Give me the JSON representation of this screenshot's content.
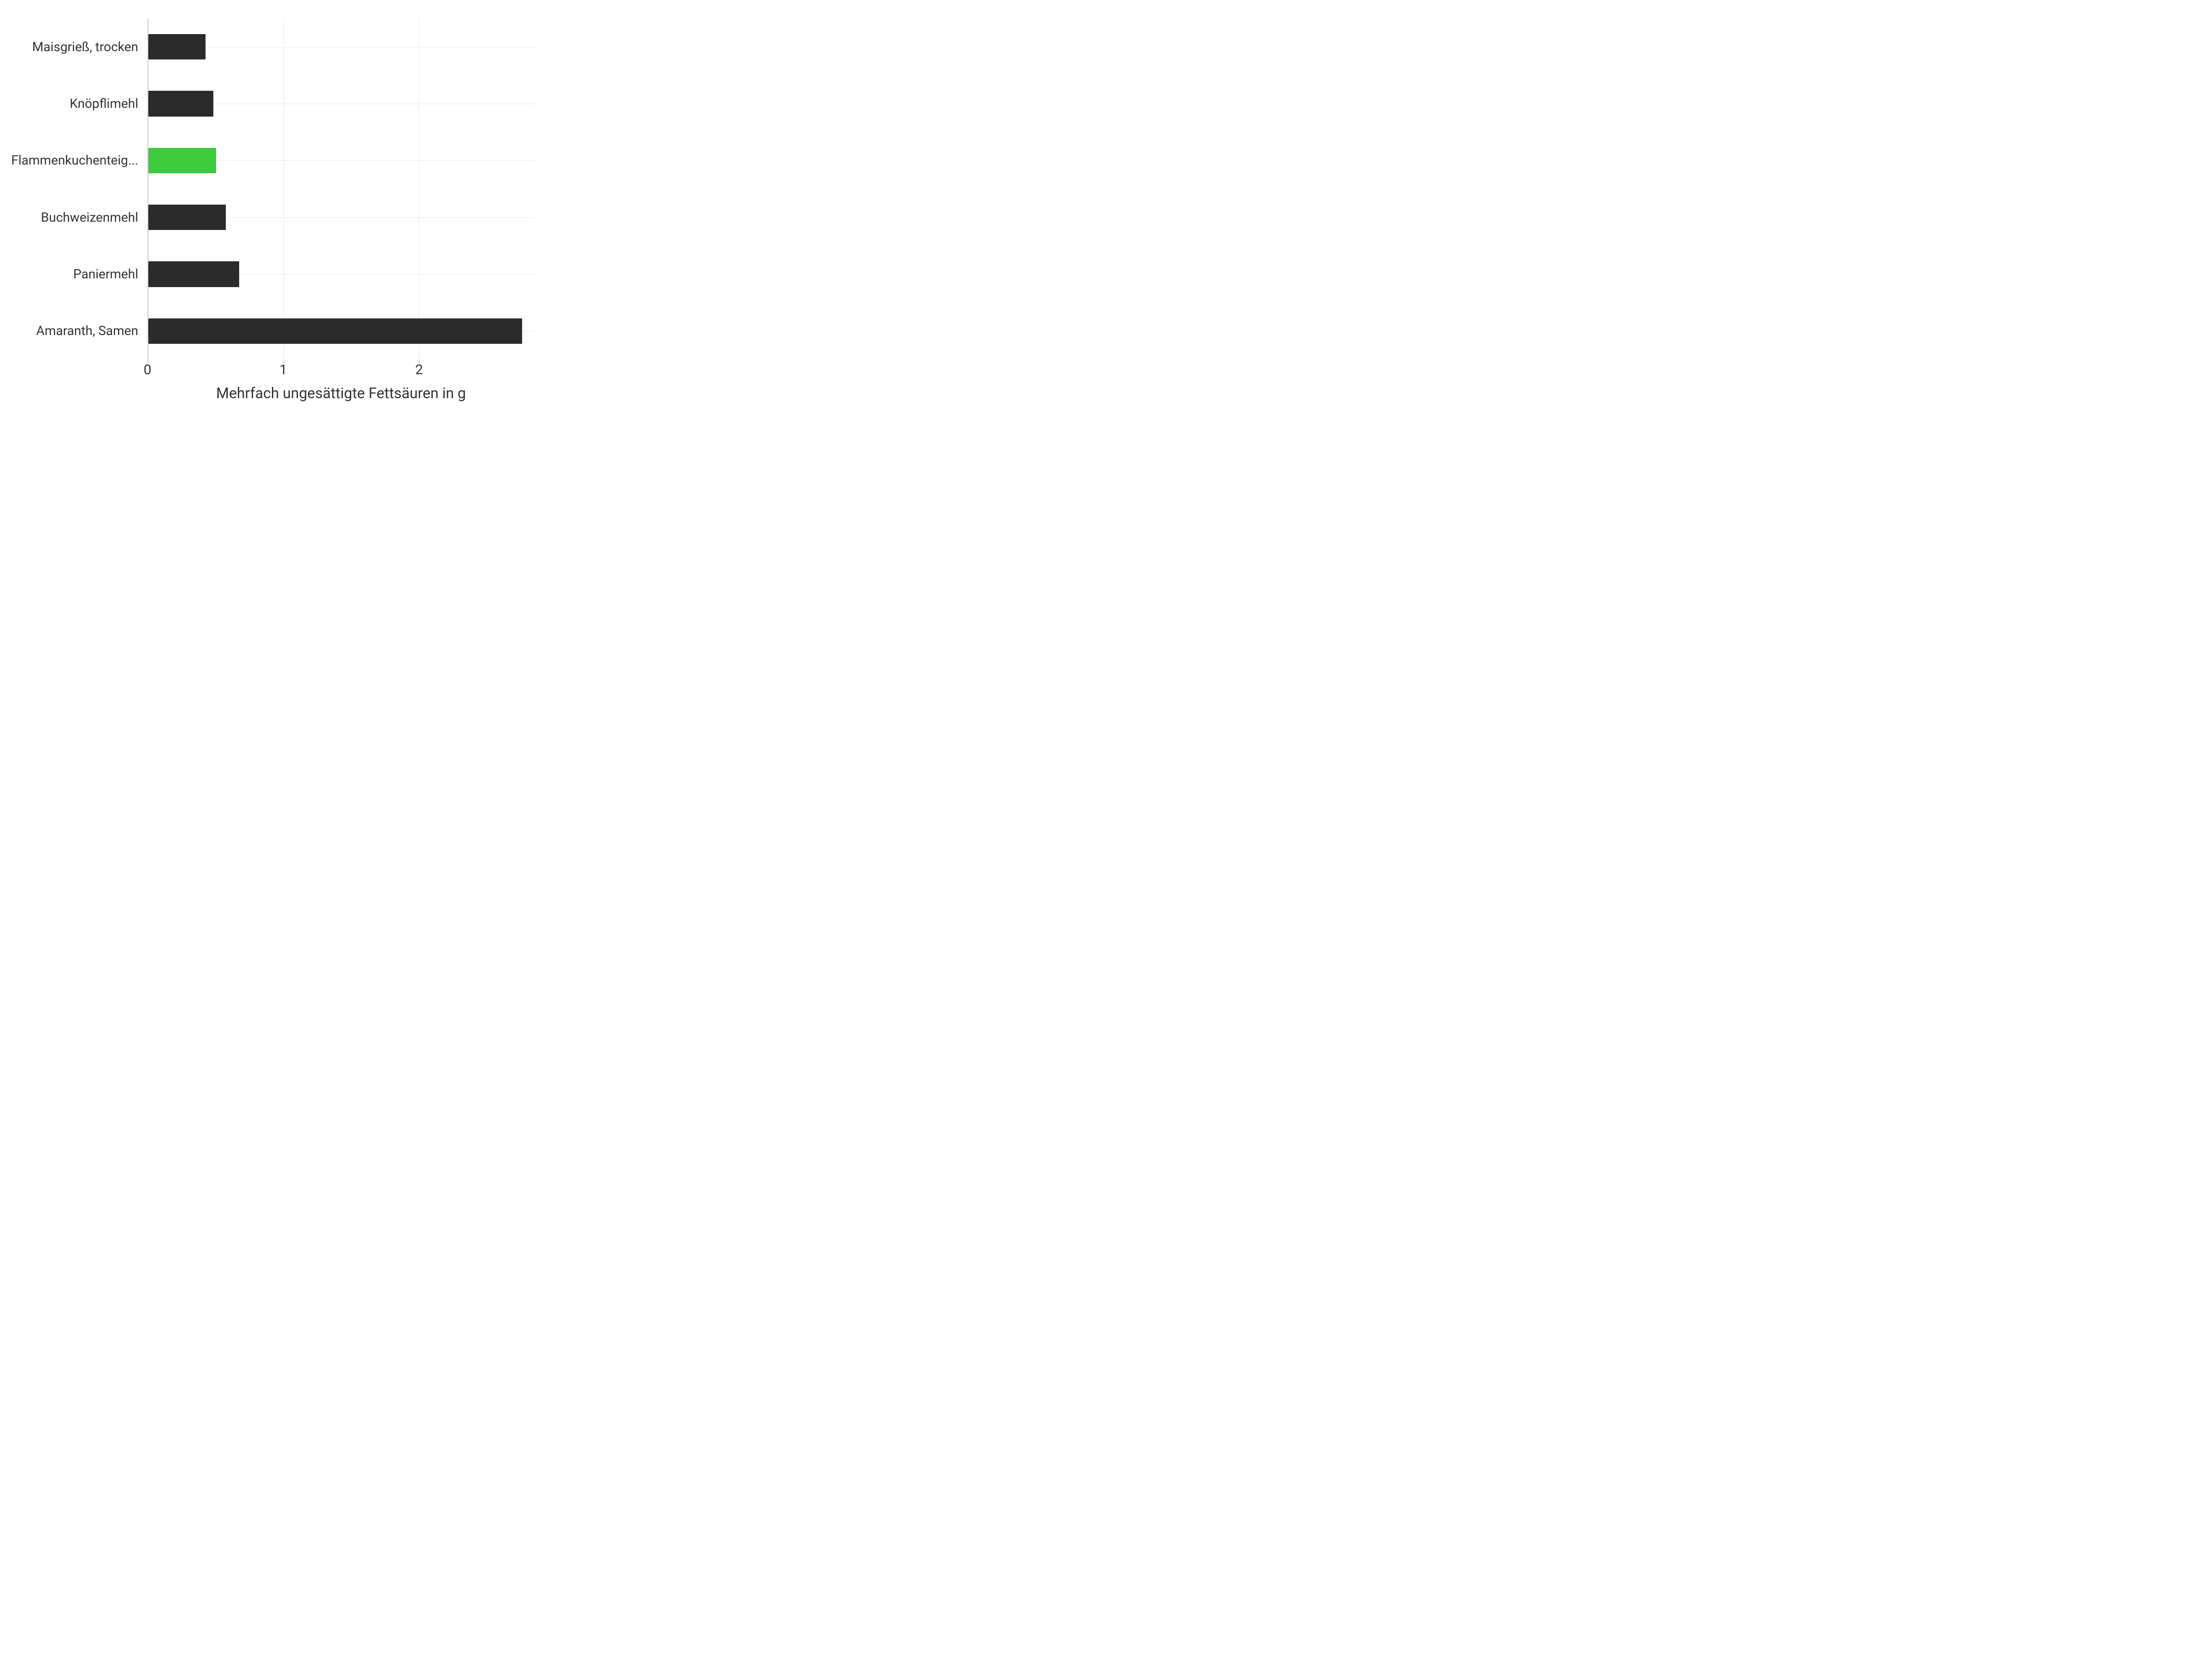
{
  "chart": {
    "type": "bar",
    "orientation": "horizontal",
    "x_axis_title": "Mehrfach ungesättigte Fettsäuren in g",
    "background_color": "#ffffff",
    "grid_color": "#e8e8e8",
    "axis_color": "#cccccc",
    "label_color": "#333333",
    "label_fontsize": 28,
    "axis_title_fontsize": 32,
    "tick_fontsize": 30,
    "xlim": [
      0,
      2.85
    ],
    "x_ticks": [
      0,
      1,
      2
    ],
    "x_tick_labels": [
      "0",
      "1",
      "2"
    ],
    "bar_height_ratio": 0.45,
    "categories": [
      "Maisgrieß, trocken",
      "Knöpflimehl",
      "Flammenkuchenteig...",
      "Buchweizenmehl",
      "Paniermehl",
      "Amaranth, Samen"
    ],
    "values": [
      0.42,
      0.48,
      0.5,
      0.57,
      0.67,
      2.75
    ],
    "bar_colors": [
      "#2b2b2b",
      "#2b2b2b",
      "#3ec93e",
      "#2b2b2b",
      "#2b2b2b",
      "#2b2b2b"
    ]
  }
}
